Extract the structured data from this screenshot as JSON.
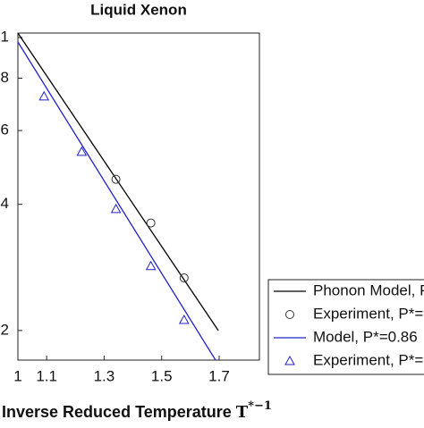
{
  "chart_data": {
    "type": "line",
    "title": "Liquid Xenon",
    "xlabel": "Inverse Reduced Temperature",
    "xlabel_symbol": "T",
    "xlabel_sup": "*−1",
    "xlim": [
      1,
      1.84
    ],
    "xticks": [
      1,
      1.1,
      1.3,
      1.5,
      1.7
    ],
    "ylim": [
      0.17,
      1.025
    ],
    "ylog": true,
    "yticks": [
      1,
      {
        "value": 0.8,
        "label": "8"
      },
      {
        "value": 0.6,
        "label": "6"
      },
      {
        "value": 0.4,
        "label": "4"
      },
      {
        "value": 0.2,
        "label": "2"
      }
    ],
    "series": [
      {
        "name": "Phonon Model, P",
        "color": "#000000",
        "style": "line",
        "x": [
          1,
          1.697
        ],
        "values": [
          1.025,
          0.2
        ]
      },
      {
        "name": "Experiment, P*=",
        "color": "#333333",
        "style": "circle",
        "x": [
          1.341,
          1.4625,
          1.578
        ],
        "values": [
          0.459,
          0.361,
          0.267
        ]
      },
      {
        "name": "Model, P*=0.86",
        "color": "#2222cc",
        "style": "line",
        "x": [
          1,
          1.6875
        ],
        "values": [
          0.976,
          0.17
        ]
      },
      {
        "name": "Experiment, P*=",
        "color": "#2222cc",
        "style": "triangle",
        "x": [
          1.091,
          1.222,
          1.341,
          1.4625,
          1.578
        ],
        "values": [
          0.724,
          0.534,
          0.39,
          0.285,
          0.212
        ]
      }
    ]
  }
}
